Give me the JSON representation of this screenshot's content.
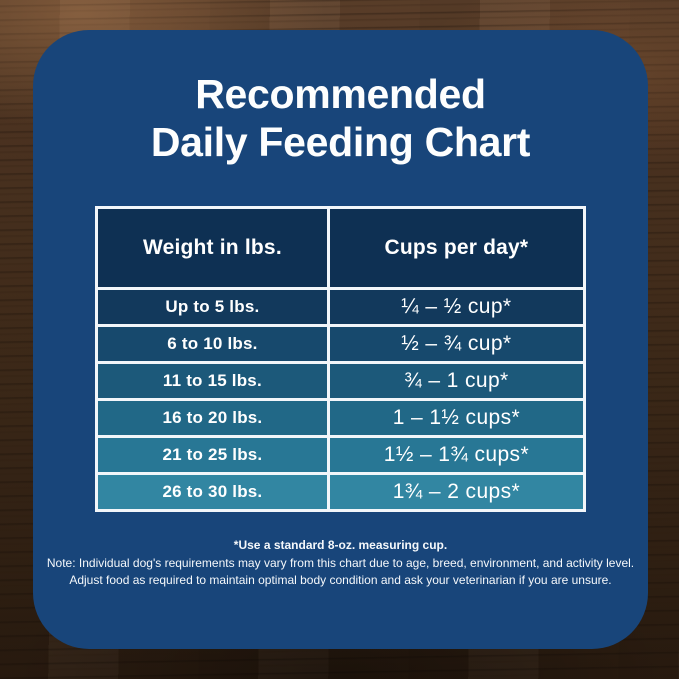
{
  "title": {
    "line1": "Recommended",
    "line2": "Daily Feeding Chart"
  },
  "chart_data": {
    "type": "table",
    "title": "Recommended Daily Feeding Chart",
    "columns": [
      "Weight in lbs.",
      "Cups per day*"
    ],
    "rows": [
      [
        "Up to 5 lbs.",
        "¼ – ½ cup*"
      ],
      [
        "6 to 10 lbs.",
        "½ – ¾ cup*"
      ],
      [
        "11 to 15 lbs.",
        "¾ – 1 cup*"
      ],
      [
        "16 to 20 lbs.",
        "1 – 1½ cups*"
      ],
      [
        "21 to 25 lbs.",
        "1½ – 1¾ cups*"
      ],
      [
        "26 to 30 lbs.",
        "1¾ – 2 cups*"
      ]
    ],
    "units_note": "cups measured with a standard 8-oz. measuring cup"
  },
  "footnotes": {
    "cup_note": "*Use a standard 8-oz. measuring cup.",
    "disclaimer_line1": "Note: Individual dog's requirements may vary from this chart due to age, breed, environment, and activity level.",
    "disclaimer_line2": "Adjust food as required to maintain optimal body condition and ask your veterinarian if you are unsure."
  },
  "colors": {
    "card_background": "#18457a",
    "header_cell_background": "#0e3053",
    "table_border": "#f2f6fa",
    "text": "#ffffff",
    "row_backgrounds": [
      "#12395c",
      "#17496d",
      "#1c597a",
      "#216887",
      "#287795",
      "#3286a2"
    ]
  }
}
